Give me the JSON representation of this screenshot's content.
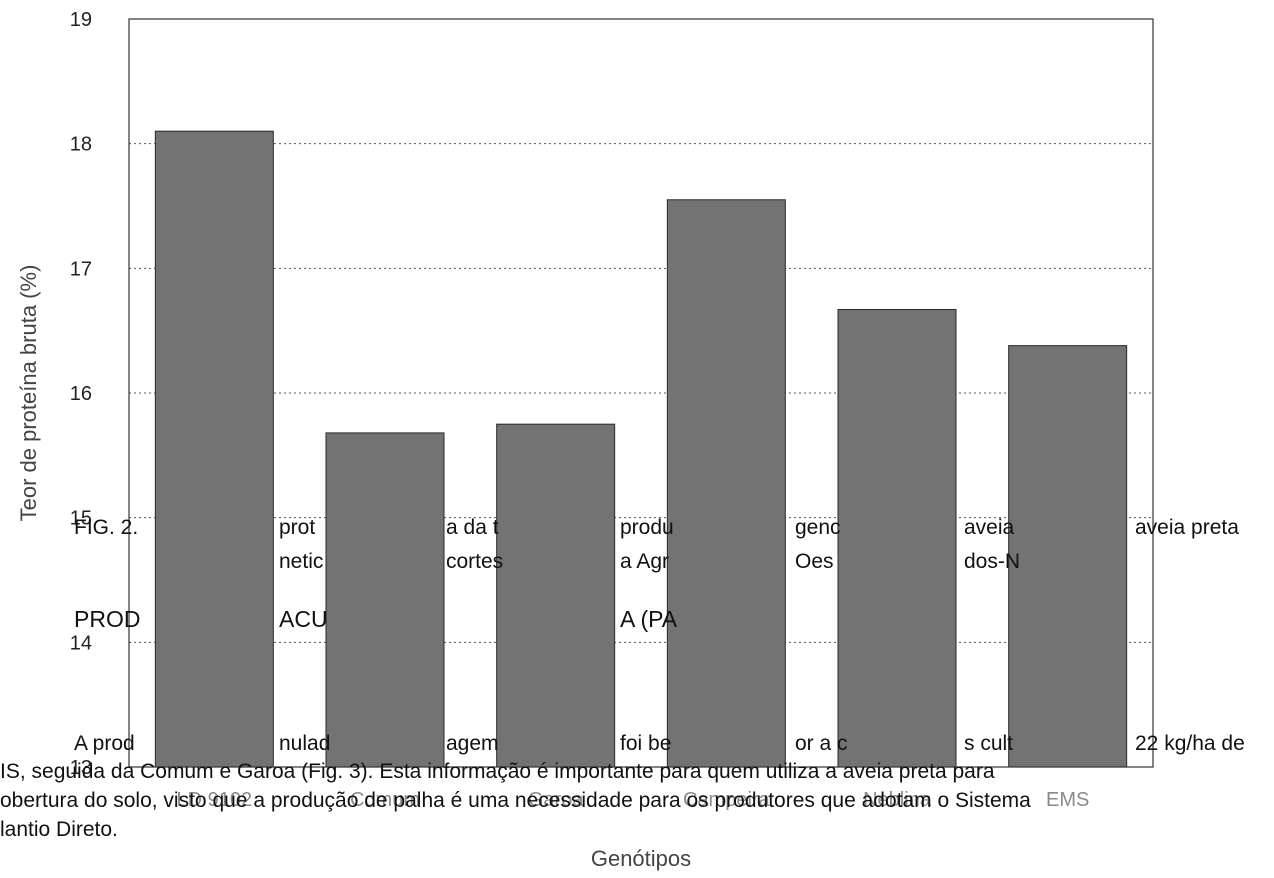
{
  "chart_data": {
    "type": "bar",
    "categories": [
      "LD 9102",
      "Comum",
      "Garoa",
      "Campeira",
      "Neblina",
      "EMS"
    ],
    "values": [
      18.1,
      15.68,
      15.75,
      17.55,
      16.67,
      16.38
    ],
    "xlabel": "Genótipos",
    "ylabel": "Teor de proteína bruta (%)",
    "ylim": [
      13,
      19
    ],
    "yticks": [
      13,
      14,
      15,
      16,
      17,
      18,
      19
    ],
    "grid": "horizontal-dotted",
    "bar_color": "#737373"
  },
  "overlay_text": {
    "fig_line1_a": "FIG. 2.",
    "fig_line1_b": "prot",
    "fig_line1_c": "a da t",
    "fig_line1_d": "produ",
    "fig_line1_e": "genc",
    "fig_line1_f": "aveia",
    "fig_line1_g": "aveia preta",
    "fig_line2_a": "netic",
    "fig_line2_b": "cortes",
    "fig_line2_c": "a Agr",
    "fig_line2_d": "Oes",
    "fig_line2_e": "dos-N",
    "heading_a": "PROD",
    "heading_b": "ACU",
    "heading_c": "A (PA",
    "para1_a": "A prod",
    "para1_b": "nulad",
    "para1_c": "agem",
    "para1_d": "foi be",
    "para1_e": "or a c",
    "para1_f": "s cult",
    "para1_g": "22 kg/ha de",
    "para2": "IS, seguida da Comum e Garoa (Fig. 3). Esta informação é importante para quem utiliza a aveia preta para",
    "para3": "obertura do solo, visto que a produção de palha é uma necessidade para os produtores que adotam o Sistema",
    "para4": "lantio Direto."
  }
}
